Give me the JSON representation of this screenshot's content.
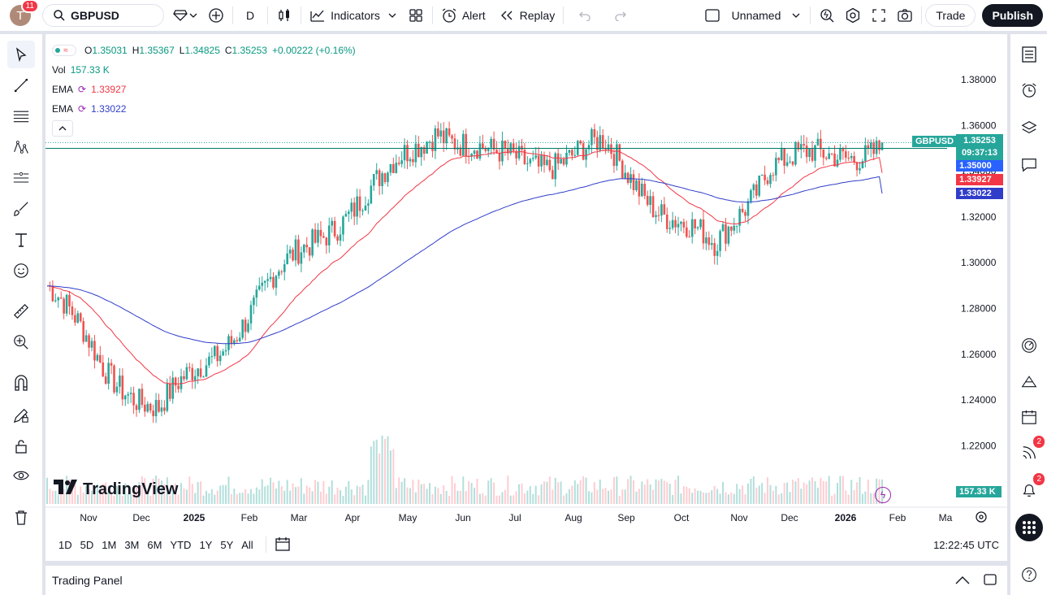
{
  "topbar": {
    "avatar_letter": "T",
    "avatar_badge": "11",
    "symbol": "GBPUSD",
    "interval": "D",
    "indicators_label": "Indicators",
    "alert_label": "Alert",
    "replay_label": "Replay",
    "layout_name": "Unnamed",
    "trade_label": "Trade",
    "publish_label": "Publish"
  },
  "legend": {
    "open_label": "O",
    "open": "1.35031",
    "high_label": "H",
    "high": "1.35367",
    "low_label": "L",
    "low": "1.34825",
    "close_label": "C",
    "close": "1.35253",
    "change": "+0.00222 (+0.16%)",
    "vol_label": "Vol",
    "vol_value": "157.33 K",
    "ema1_label": "EMA",
    "ema1_value": "1.33927",
    "ema2_label": "EMA",
    "ema2_value": "1.33022"
  },
  "price_scale": [
    "1.38000",
    "1.36000",
    "1.34000",
    "1.32000",
    "1.30000",
    "1.28000",
    "1.26000",
    "1.24000",
    "1.22000"
  ],
  "price_tags": {
    "symbol": "GBPUSD",
    "last_price": "1.35253",
    "countdown": "09:37:13",
    "level_1": "1.35000",
    "ema1": "1.33927",
    "ema2": "1.33022",
    "volume": "157.33 K"
  },
  "time_axis": [
    "Nov",
    "Dec",
    "2025",
    "Feb",
    "Mar",
    "Apr",
    "May",
    "Jun",
    "Jul",
    "Aug",
    "Sep",
    "Oct",
    "Nov",
    "Dec",
    "2026",
    "Feb",
    "Ma"
  ],
  "watermark": "TradingView",
  "periods": [
    "1D",
    "5D",
    "1M",
    "3M",
    "6M",
    "YTD",
    "1Y",
    "5Y",
    "All"
  ],
  "clock": "12:22:45 UTC",
  "trading_panel_label": "Trading Panel",
  "right_badges": {
    "signals": "2",
    "notifications": "2"
  },
  "colors": {
    "up": "#26a69a",
    "down": "#ef5350",
    "ema_fast": "#f23645",
    "ema_slow": "#2f3dc9",
    "accent": "#2962ff"
  },
  "chart_data": {
    "type": "candlestick",
    "series": [
      {
        "name": "EMA",
        "values_description": "fast EMA",
        "last": 1.33927
      },
      {
        "name": "EMA",
        "values_description": "slow EMA",
        "last": 1.33022
      }
    ],
    "ylim": [
      1.21,
      1.39
    ],
    "last_close": 1.35253,
    "months": [
      "Nov",
      "Dec",
      "2025",
      "Feb",
      "Mar",
      "Apr",
      "May",
      "Jun",
      "Jul",
      "Aug",
      "Sep",
      "Oct",
      "Nov",
      "Dec",
      "2026",
      "Feb"
    ],
    "approx_monthly_close": [
      1.29,
      1.255,
      1.235,
      1.26,
      1.29,
      1.315,
      1.335,
      1.36,
      1.345,
      1.345,
      1.35,
      1.325,
      1.305,
      1.345,
      1.345,
      1.3525
    ]
  }
}
